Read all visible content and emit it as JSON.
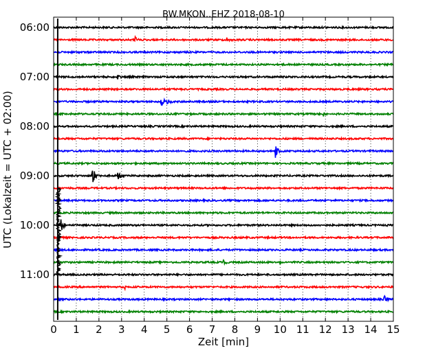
{
  "chart_data": {
    "type": "line",
    "title": "BW.MKON..EHZ 2018-08-10",
    "xlabel": "Zeit  [min]",
    "ylabel": "UTC (Lokalzeit = UTC + 02:00)",
    "xlim": [
      0,
      15
    ],
    "x_ticks": [
      0,
      1,
      2,
      3,
      4,
      5,
      6,
      7,
      8,
      9,
      10,
      11,
      12,
      13,
      14,
      15
    ],
    "x_tick_labels": [
      "0",
      "1",
      "2",
      "3",
      "4",
      "5",
      "6",
      "7",
      "8",
      "9",
      "10",
      "11",
      "12",
      "13",
      "14",
      "15"
    ],
    "y_tick_labels": [
      "06:00",
      "07:00",
      "08:00",
      "09:00",
      "10:00",
      "11:00"
    ],
    "y_tick_rows": [
      0,
      4,
      8,
      12,
      16,
      20
    ],
    "minutes_per_trace": 15,
    "trace_start_times": [
      "06:00",
      "06:15",
      "06:30",
      "06:45",
      "07:00",
      "07:15",
      "07:30",
      "07:45",
      "08:00",
      "08:15",
      "08:30",
      "08:45",
      "09:00",
      "09:15",
      "09:30",
      "09:45",
      "10:00",
      "10:15",
      "10:30",
      "10:45",
      "11:00",
      "11:15",
      "11:30",
      "11:45"
    ],
    "trace_colors": [
      "#000000",
      "#ff0000",
      "#0000ff",
      "#008000"
    ],
    "grid": "vertical dotted",
    "events": [
      {
        "trace": 1,
        "x": 3.6,
        "amp": 0.25
      },
      {
        "trace": 1,
        "x": 7.6,
        "amp": 0.3
      },
      {
        "trace": 4,
        "x": 2.8,
        "amp": 0.25
      },
      {
        "trace": 6,
        "x": 4.75,
        "amp": 0.45
      },
      {
        "trace": 6,
        "x": 5.0,
        "amp": 0.35
      },
      {
        "trace": 7,
        "x": 11.9,
        "amp": 0.2
      },
      {
        "trace": 10,
        "x": 9.8,
        "amp": 0.6
      },
      {
        "trace": 12,
        "x": 1.7,
        "amp": 0.9
      },
      {
        "trace": 12,
        "x": 2.85,
        "amp": 0.35
      },
      {
        "trace": 16,
        "x": 0.3,
        "amp": 0.7
      },
      {
        "trace": 19,
        "x": 7.5,
        "amp": 0.2
      },
      {
        "trace": 19,
        "x": 10.0,
        "amp": 0.2
      },
      {
        "trace": 21,
        "x": 3.1,
        "amp": 0.2
      },
      {
        "trace": 22,
        "x": 14.6,
        "amp": 0.3
      }
    ],
    "large_event": {
      "trace": 16,
      "x": 0.22,
      "spans_traces": [
        13,
        20
      ]
    }
  }
}
